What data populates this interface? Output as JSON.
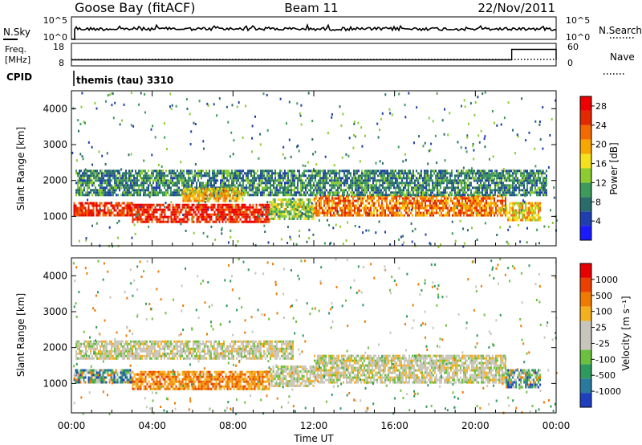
{
  "header": {
    "station": "Goose Bay (fitACF)",
    "beam": "Beam 11",
    "date": "22/Nov/2011"
  },
  "noise_panel": {
    "left_label": "N.Sky",
    "left_ticks": [
      "10^5",
      "10^0"
    ],
    "right_ticks": [
      "10^5",
      "10^0"
    ],
    "right_label": "N.Search"
  },
  "freq_panel": {
    "left_label_top": "Freq.",
    "left_label_bottom": "[MHz]",
    "left_ticks": [
      "18",
      "8"
    ],
    "right_ticks": [
      "60",
      "0"
    ],
    "right_label": "Nave",
    "nave_step": {
      "x": [
        0,
        12.1,
        21.8,
        24
      ],
      "y": [
        15,
        15,
        45,
        15
      ]
    }
  },
  "cpid": {
    "label": "CPID",
    "text": "themis (tau) 3310"
  },
  "x_axis": {
    "title": "Time UT",
    "ticks": [
      "00:00",
      "04:00",
      "08:00",
      "12:00",
      "16:00",
      "20:00",
      "00:00"
    ],
    "range": [
      0,
      24
    ]
  },
  "chart_data": [
    {
      "type": "heatmap",
      "title": "",
      "xlabel": "Time UT",
      "ylabel": "Slant Range [km]",
      "yticks": [
        "1000",
        "2000",
        "3000",
        "4000"
      ],
      "xlim": [
        0,
        24
      ],
      "ylim": [
        180,
        4500
      ],
      "colorbar": {
        "label": "Power [dB]",
        "ticks": [
          "4",
          "8",
          "12",
          "16",
          "20",
          "24",
          "28"
        ],
        "range": [
          0,
          30
        ],
        "colors": [
          "#1a1aff",
          "#1f3fae",
          "#2a6b6b",
          "#3d9a5a",
          "#8dcc30",
          "#f5e01e",
          "#f7a700",
          "#f26a00",
          "#e42800",
          "#ee0000"
        ]
      },
      "bands": [
        {
          "t0": 0.1,
          "t1": 3.0,
          "r0": 1000,
          "r1": 1400,
          "level": 26
        },
        {
          "t0": 3.0,
          "t1": 9.8,
          "r0": 850,
          "r1": 1350,
          "level": 27
        },
        {
          "t0": 9.8,
          "t1": 12.0,
          "r0": 900,
          "r1": 1500,
          "level": 14
        },
        {
          "t0": 12.0,
          "t1": 21.5,
          "r0": 1050,
          "r1": 1600,
          "level": 22
        },
        {
          "t0": 21.5,
          "t1": 23.2,
          "r0": 900,
          "r1": 1400,
          "level": 18
        },
        {
          "t0": 0.2,
          "t1": 23.5,
          "r0": 1600,
          "r1": 2300,
          "level": 9
        },
        {
          "t0": 5.5,
          "t1": 8.5,
          "r0": 1400,
          "r1": 1800,
          "level": 19
        }
      ]
    },
    {
      "type": "heatmap",
      "title": "",
      "xlabel": "Time UT",
      "ylabel": "Slant Range [km]",
      "yticks": [
        "1000",
        "2000",
        "3000",
        "4000"
      ],
      "xlim": [
        0,
        24
      ],
      "ylim": [
        180,
        4500
      ],
      "colorbar": {
        "label": "Velocity [m s⁻¹]",
        "ticks": [
          "1000",
          "500",
          "100",
          "25",
          "-25",
          "-100",
          "-500",
          "-1000"
        ],
        "colors": [
          "#1e3fc0",
          "#2a7aa0",
          "#2e9a5e",
          "#6cc040",
          "#c8c6bc",
          "#c8c6bc",
          "#f5b020",
          "#f07a00",
          "#ea4000",
          "#e80000"
        ]
      },
      "bands": [
        {
          "t0": 0.1,
          "t1": 3.0,
          "r0": 1000,
          "r1": 1400,
          "class": "mixed-blue-green"
        },
        {
          "t0": 3.0,
          "t1": 9.8,
          "r0": 850,
          "r1": 1350,
          "class": "orange"
        },
        {
          "t0": 9.8,
          "t1": 12.0,
          "r0": 900,
          "r1": 1500,
          "class": "gray"
        },
        {
          "t0": 12.0,
          "t1": 21.5,
          "r0": 1050,
          "r1": 1800,
          "class": "gray"
        },
        {
          "t0": 21.5,
          "t1": 23.2,
          "r0": 900,
          "r1": 1400,
          "class": "mixed-blue-green"
        },
        {
          "t0": 0.2,
          "t1": 11.0,
          "r0": 1700,
          "r1": 2200,
          "class": "gray"
        }
      ]
    }
  ]
}
